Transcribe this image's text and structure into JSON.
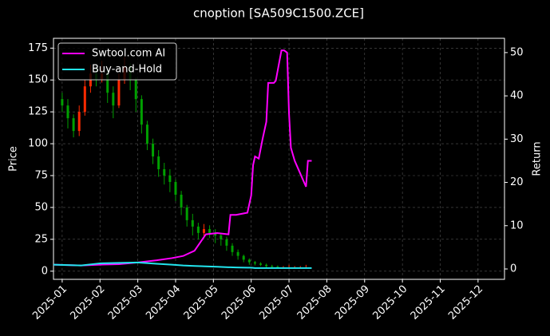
{
  "chart_data": {
    "type": "candlestick_lines",
    "title": "cnoption [SA509C1500.ZCE]",
    "y_label": "Price",
    "y2_label": "Return",
    "grid": true,
    "legend": "upper left",
    "up_color": "#ff2a00",
    "down_color": "#00a000",
    "xlim": [
      0.77,
      12.7
    ],
    "xticks": [
      {
        "value": 1,
        "label": "2025-01"
      },
      {
        "value": 2,
        "label": "2025-02"
      },
      {
        "value": 3,
        "label": "2025-03"
      },
      {
        "value": 4,
        "label": "2025-04"
      },
      {
        "value": 5,
        "label": "2025-05"
      },
      {
        "value": 6,
        "label": "2025-06"
      },
      {
        "value": 7,
        "label": "2025-07"
      },
      {
        "value": 8,
        "label": "2025-08"
      },
      {
        "value": 9,
        "label": "2025-09"
      },
      {
        "value": 10,
        "label": "2025-10"
      },
      {
        "value": 11,
        "label": "2025-11"
      },
      {
        "value": 12,
        "label": "2025-12"
      }
    ],
    "ylim": [
      -6.4,
      182.7
    ],
    "yticks": [
      0,
      25,
      50,
      75,
      100,
      125,
      150,
      175
    ],
    "y2lim": [
      -2.4,
      53.3
    ],
    "y2ticks": [
      0,
      10,
      20,
      30,
      40,
      50
    ],
    "candles": {
      "x": [
        1.0,
        1.15,
        1.3,
        1.45,
        1.6,
        1.75,
        1.9,
        2.05,
        2.2,
        2.35,
        2.5,
        2.65,
        2.8,
        2.95,
        3.1,
        3.25,
        3.4,
        3.55,
        3.7,
        3.85,
        4.0,
        4.15,
        4.3,
        4.45,
        4.6,
        4.75,
        4.9,
        5.05,
        5.2,
        5.35,
        5.5,
        5.65,
        5.8,
        5.95,
        6.1,
        6.25,
        6.4,
        6.55,
        6.7,
        6.85,
        7.0,
        7.15,
        7.3,
        7.45
      ],
      "open": [
        135,
        130,
        120,
        110,
        125,
        145,
        155,
        150,
        155,
        140,
        130,
        150,
        160,
        150,
        135,
        115,
        100,
        90,
        80,
        75,
        70,
        60,
        50,
        40,
        35,
        30,
        33,
        30,
        28,
        25,
        20,
        15,
        12,
        9,
        7,
        6,
        5,
        4,
        3.5,
        3,
        3,
        3,
        3,
        3
      ],
      "high": [
        140,
        135,
        123,
        130,
        150,
        162,
        160,
        165,
        158,
        145,
        155,
        168,
        163,
        152,
        138,
        118,
        104,
        95,
        85,
        80,
        72,
        63,
        52,
        45,
        38,
        37,
        36,
        33,
        30,
        27,
        22,
        17,
        13,
        10,
        8,
        7,
        6,
        5,
        4.5,
        4,
        5,
        4,
        4,
        5
      ],
      "low": [
        125,
        112,
        105,
        106,
        122,
        140,
        145,
        148,
        132,
        120,
        128,
        147,
        142,
        125,
        108,
        95,
        84,
        74,
        68,
        62,
        55,
        44,
        35,
        28,
        25,
        27,
        26,
        22,
        20,
        16,
        12,
        9,
        7,
        5,
        4.5,
        4,
        3,
        2.5,
        2.5,
        2,
        2,
        2,
        2,
        2
      ],
      "close": [
        130,
        120,
        110,
        125,
        145,
        155,
        150,
        155,
        140,
        130,
        150,
        160,
        150,
        135,
        115,
        100,
        90,
        80,
        75,
        70,
        60,
        50,
        40,
        35,
        30,
        33,
        30,
        28,
        25,
        20,
        15,
        12,
        9,
        7,
        6,
        5,
        4,
        3.5,
        3,
        3,
        3,
        3,
        3,
        3
      ]
    },
    "x": [
      0.77,
      1.5,
      2.0,
      2.5,
      3.0,
      3.5,
      3.9,
      4.2,
      4.5,
      4.8,
      5.1,
      5.4,
      5.45,
      5.6,
      5.9,
      6.0,
      6.05,
      6.1,
      6.2,
      6.3,
      6.4,
      6.45,
      6.6,
      6.65,
      6.8,
      6.87,
      6.95,
      7.0,
      7.05,
      7.15,
      7.3,
      7.45,
      7.5,
      7.6
    ],
    "series": [
      {
        "name": "Swtool.com AI",
        "color": "#ff00ff",
        "axis": "y2",
        "values": [
          1,
          0.8,
          1,
          1.1,
          1.5,
          2,
          2.5,
          3,
          4.2,
          8,
          8.3,
          8,
          12.5,
          12.5,
          13,
          17,
          24,
          26,
          25.5,
          30,
          34,
          43,
          43,
          43.5,
          50.5,
          50.5,
          50,
          36,
          28,
          25,
          22,
          19,
          25,
          25
        ]
      },
      {
        "name": "Buy-and-Hold",
        "color": "#22e5ee",
        "axis": "y2",
        "values": [
          1,
          0.8,
          1.3,
          1.4,
          1.5,
          1.2,
          1,
          0.8,
          0.7,
          0.6,
          0.5,
          0.4,
          0.4,
          0.35,
          0.3,
          0.3,
          0.25,
          0.2,
          0.2,
          0.2,
          0.2,
          0.2,
          0.2,
          0.2,
          0.2,
          0.2,
          0.2,
          0.2,
          0.2,
          0.2,
          0.2,
          0.2,
          0.2,
          0.2
        ]
      }
    ]
  }
}
